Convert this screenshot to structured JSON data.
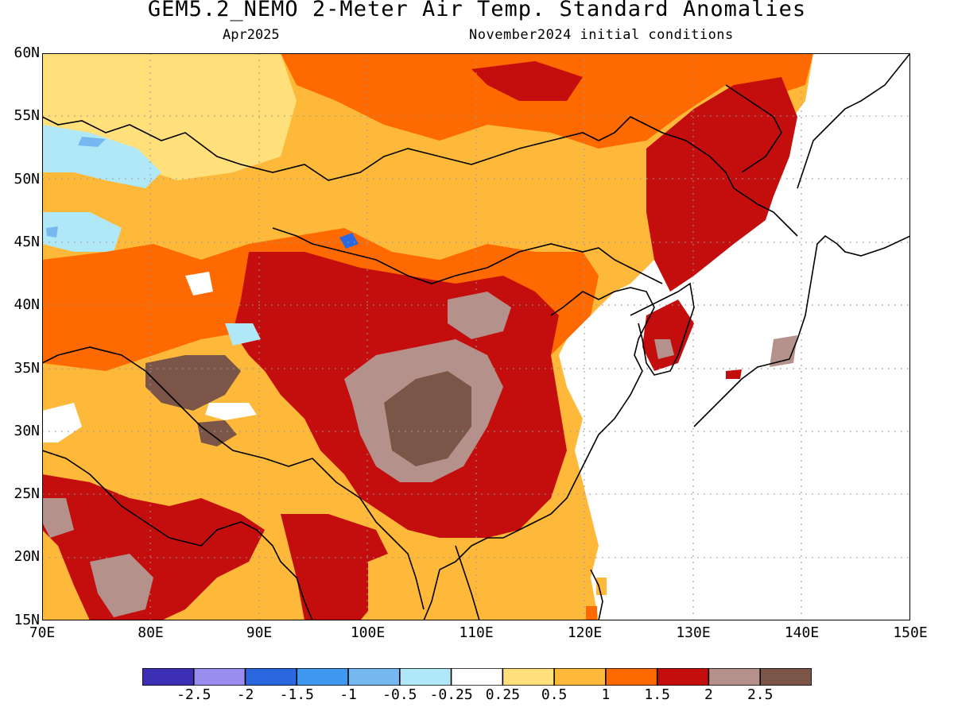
{
  "title": "GEM5.2_NEMO 2-Meter Air Temp. Standard Anomalies",
  "subtitle_left": "Apr2025",
  "subtitle_right": "November2024 initial conditions",
  "lat_labels": [
    "60N",
    "55N",
    "50N",
    "45N",
    "40N",
    "35N",
    "30N",
    "25N",
    "20N",
    "15N"
  ],
  "lon_labels": [
    "70E",
    "80E",
    "90E",
    "100E",
    "110E",
    "120E",
    "130E",
    "140E",
    "150E"
  ],
  "colorbar": {
    "colors": [
      "#3c2fb4",
      "#9b8cf0",
      "#2a68e0",
      "#3f97f0",
      "#78b8f0",
      "#b0e8f8",
      "#ffffff",
      "#ffe07a",
      "#ffb93a",
      "#ff6a00",
      "#c40e0e",
      "#b4918a",
      "#7a5548"
    ],
    "labels": [
      "-2.5",
      "-2",
      "-1.5",
      "-1",
      "-0.5",
      "-0.25",
      "0.25",
      "0.5",
      "1",
      "1.5",
      "2",
      "2.5"
    ]
  },
  "map_colors": {
    "ocean": "#ffffff",
    "coast": "#000000",
    "c0_5": "#ffe07a",
    "c1": "#ffb93a",
    "c1_5": "#ff6a00",
    "c2": "#c40e0e",
    "c2_5": "#b4918a",
    "c3": "#7a5548",
    "cool1": "#b0e8f8",
    "cool2": "#78b8f0",
    "cool3": "#2a68e0"
  }
}
